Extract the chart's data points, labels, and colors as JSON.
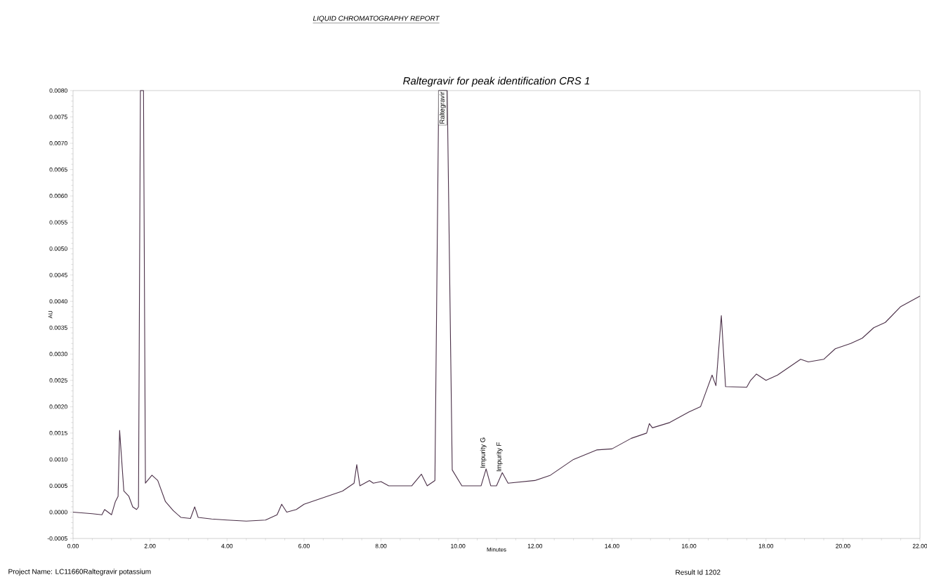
{
  "chart_data": {
    "type": "line",
    "title": "Raltegravir for peak identification CRS 1",
    "xlabel": "Minutes",
    "ylabel": "AU",
    "x": [
      0.0,
      0.5,
      0.75,
      0.82,
      1.0,
      1.1,
      1.17,
      1.21,
      1.32,
      1.45,
      1.55,
      1.65,
      1.7,
      1.75,
      1.83,
      1.88,
      2.05,
      2.2,
      2.4,
      2.6,
      2.8,
      3.05,
      3.16,
      3.25,
      3.6,
      4.0,
      4.5,
      5.0,
      5.3,
      5.42,
      5.55,
      5.8,
      6.0,
      6.2,
      7.0,
      7.2,
      7.3,
      7.37,
      7.45,
      7.7,
      7.8,
      8.0,
      8.2,
      8.8,
      9.05,
      9.2,
      9.4,
      9.5,
      9.72,
      9.85,
      10.1,
      10.6,
      10.73,
      10.85,
      11.0,
      11.15,
      11.3,
      12.0,
      12.4,
      12.6,
      13.0,
      13.6,
      14.0,
      14.5,
      14.9,
      14.97,
      15.05,
      15.5,
      16.0,
      16.3,
      16.45,
      16.6,
      16.7,
      16.84,
      16.95,
      17.5,
      17.6,
      17.75,
      18.0,
      18.3,
      18.5,
      18.7,
      18.9,
      19.1,
      19.5,
      19.8,
      20.2,
      20.5,
      20.8,
      21.1,
      21.5,
      22.0
    ],
    "series": [
      {
        "color": "#4b3048",
        "values": [
          0.0,
          -3e-05,
          -5e-05,
          5e-05,
          -5e-05,
          0.0002,
          0.0003,
          0.00155,
          0.0004,
          0.0003,
          0.0001,
          5e-05,
          0.0001,
          0.008,
          0.008,
          0.00055,
          0.0007,
          0.0006,
          0.0002,
          3e-05,
          -0.0001,
          -0.00012,
          0.0001,
          -0.0001,
          -0.00013,
          -0.00015,
          -0.00017,
          -0.00015,
          -5e-05,
          0.00015,
          0.0,
          5e-05,
          0.00015,
          0.0002,
          0.0004,
          0.0005,
          0.00055,
          0.0009,
          0.0005,
          0.0006,
          0.00055,
          0.00058,
          0.0005,
          0.0005,
          0.00072,
          0.0005,
          0.0006,
          0.008,
          0.008,
          0.0008,
          0.0005,
          0.0005,
          0.00082,
          0.0005,
          0.0005,
          0.00075,
          0.00055,
          0.0006,
          0.0007,
          0.0008,
          0.001,
          0.00118,
          0.0012,
          0.0014,
          0.0015,
          0.00168,
          0.0016,
          0.0017,
          0.0019,
          0.002,
          0.0023,
          0.0026,
          0.0024,
          0.00373,
          0.00238,
          0.00237,
          0.0025,
          0.00262,
          0.0025,
          0.0026,
          0.0027,
          0.0028,
          0.0029,
          0.00285,
          0.0029,
          0.0031,
          0.0032,
          0.0033,
          0.0035,
          0.0036,
          0.0039,
          0.0041
        ]
      }
    ],
    "xlim": [
      0,
      22
    ],
    "ylim": [
      -0.0005,
      0.008
    ],
    "xticks": [
      {
        "value": 0,
        "label": "0.00"
      },
      {
        "value": 2,
        "label": "2.00"
      },
      {
        "value": 4,
        "label": "4.00"
      },
      {
        "value": 6,
        "label": "6.00"
      },
      {
        "value": 8,
        "label": "8.00"
      },
      {
        "value": 10,
        "label": "10.00"
      },
      {
        "value": 12,
        "label": "12.00"
      },
      {
        "value": 14,
        "label": "14.00"
      },
      {
        "value": 16,
        "label": "16.00"
      },
      {
        "value": 18,
        "label": "18.00"
      },
      {
        "value": 20,
        "label": "20.00"
      },
      {
        "value": 22,
        "label": "22.00"
      }
    ],
    "yticks": [
      {
        "value": -0.0005,
        "label": "-0.0005"
      },
      {
        "value": 0,
        "label": "0.0000"
      },
      {
        "value": 0.0005,
        "label": "0.0005"
      },
      {
        "value": 0.001,
        "label": "0.0010"
      },
      {
        "value": 0.0015,
        "label": "0.0015"
      },
      {
        "value": 0.002,
        "label": "0.0020"
      },
      {
        "value": 0.0025,
        "label": "0.0025"
      },
      {
        "value": 0.003,
        "label": "0.0030"
      },
      {
        "value": 0.0035,
        "label": "0.0035"
      },
      {
        "value": 0.004,
        "label": "0.0040"
      },
      {
        "value": 0.0045,
        "label": "0.0045"
      },
      {
        "value": 0.005,
        "label": "0.0050"
      },
      {
        "value": 0.0055,
        "label": "0.0055"
      },
      {
        "value": 0.006,
        "label": "0.0060"
      },
      {
        "value": 0.0065,
        "label": "0.0065"
      },
      {
        "value": 0.007,
        "label": "0.0070"
      },
      {
        "value": 0.0075,
        "label": "0.0075"
      },
      {
        "value": 0.008,
        "label": "0.0080"
      }
    ],
    "line_style": "solid",
    "annotations": [
      "LIQUID CHROMATOGRAPHY REPORT",
      "Project Name: LC11660Raltegravir potassium",
      "Result Id 1202",
      {
        "text": "Raltegravir",
        "x": 9.6,
        "y": 0.008
      },
      {
        "text": "Impurity G",
        "x": 10.73,
        "y": 0.00082
      },
      {
        "text": "Impurity F",
        "x": 11.15,
        "y": 0.00075
      }
    ]
  }
}
